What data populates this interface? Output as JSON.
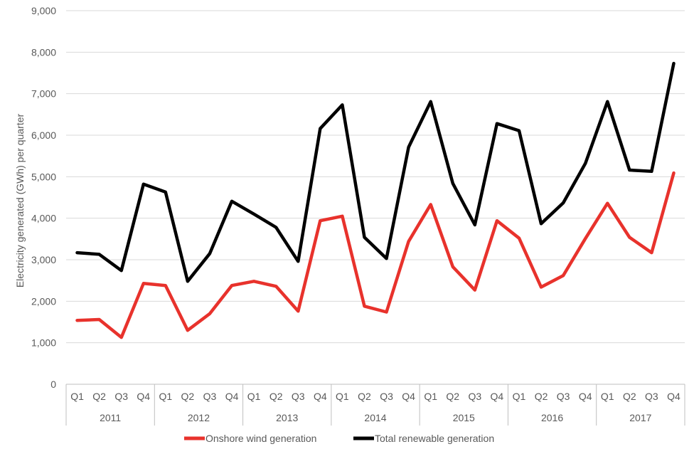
{
  "chart_data": {
    "type": "line",
    "title": "",
    "xlabel": "",
    "ylabel": "Electricity generated (GWh) per quarter",
    "ylim": [
      0,
      9000
    ],
    "yticks": [
      0,
      1000,
      2000,
      3000,
      4000,
      5000,
      6000,
      7000,
      8000,
      9000
    ],
    "ytick_labels": [
      "0",
      "1,000",
      "2,000",
      "3,000",
      "4,000",
      "5,000",
      "6,000",
      "7,000",
      "8,000",
      "9,000"
    ],
    "quarters": [
      "Q1",
      "Q2",
      "Q3",
      "Q4"
    ],
    "years": [
      "2011",
      "2012",
      "2013",
      "2014",
      "2015",
      "2016",
      "2017"
    ],
    "grid": true,
    "legend_position": "bottom",
    "series": [
      {
        "name": "Onshore wind generation",
        "color": "#e8322c",
        "values": [
          1540,
          1560,
          1130,
          2430,
          2380,
          1300,
          1700,
          2380,
          2480,
          2360,
          1760,
          3940,
          4050,
          1880,
          1740,
          3440,
          4330,
          2830,
          2270,
          3940,
          3520,
          2340,
          2620,
          3510,
          4360,
          3540,
          3170,
          5090
        ]
      },
      {
        "name": "Total renewable generation",
        "color": "#000000",
        "values": [
          3170,
          3130,
          2740,
          4820,
          4630,
          2480,
          3150,
          4410,
          4100,
          3780,
          2960,
          6160,
          6730,
          3540,
          3030,
          5710,
          6810,
          4840,
          3840,
          6280,
          6110,
          3870,
          4370,
          5320,
          6810,
          5160,
          5130,
          7730
        ]
      }
    ]
  }
}
